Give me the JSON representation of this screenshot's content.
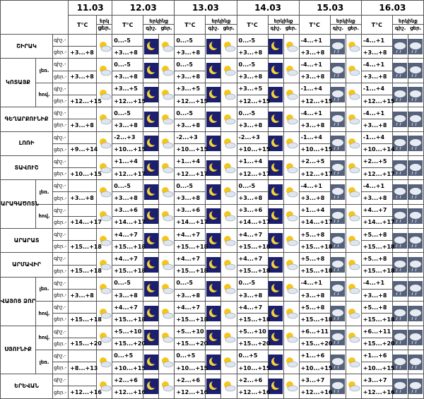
{
  "header": {
    "dates": [
      "11.03",
      "12.03",
      "13.03",
      "14.03",
      "15.03",
      "16.03"
    ],
    "temp_label": "T°C",
    "first_sky_label": "երկ",
    "sky_label": "երկինք",
    "night_label": "գիշ.",
    "day_label": "ցեր."
  },
  "row_labels": [
    "գիշ.-",
    "ցեր.-"
  ],
  "regions": [
    {
      "name": "ՇԻՐԱԿ",
      "subregions": [
        {
          "night": [
            "0...-5",
            "0...-5",
            "0...-5",
            "-4...+1",
            "-4...+1"
          ],
          "day": [
            "+3...+8",
            "+3...+8",
            "+3...+8",
            "+3...+8",
            "+3...+8",
            "+3...+8"
          ]
        }
      ]
    },
    {
      "name": "ԿՈՏԱՅՔ",
      "subregions": [
        {
          "label": "լեռ.",
          "night": [
            "0...-5",
            "0...-5",
            "0...-5",
            "-4...+1",
            "-4...+1"
          ],
          "day": [
            "+3...+8",
            "+3...+8",
            "+3...+8",
            "+3...+8",
            "+3...+8",
            "+3...+8"
          ]
        },
        {
          "label": "հով.",
          "night": [
            "+3...+5",
            "+3...+5",
            "+3...+5",
            "-1...+4",
            "-1...+4"
          ],
          "day": [
            "+12...+15",
            "+12...+15",
            "+12...+15",
            "+12...+15",
            "+12...+15",
            "+12...+15"
          ]
        }
      ]
    },
    {
      "name": "ԳԵՂԱՐՔՈՒՆԻՔ",
      "subregions": [
        {
          "night": [
            "0...-5",
            "0...-5",
            "0...-5",
            "-4...+1",
            "-4...+1"
          ],
          "day": [
            "+3...+8",
            "+3...+8",
            "+3...+8",
            "+3...+8",
            "+3...+8",
            "+3...+8"
          ]
        }
      ]
    },
    {
      "name": "ԼՈՌԻ",
      "subregions": [
        {
          "night": [
            "-2...+3",
            "-2...+3",
            "-2...+3",
            "-1...+4",
            "-1...+4"
          ],
          "day": [
            "+9...+14",
            "+10...+15",
            "+10...+15",
            "+10...+15",
            "+10...+15",
            "+10...+14"
          ]
        }
      ]
    },
    {
      "name": "ՏԱՎՈՒՇ",
      "subregions": [
        {
          "night": [
            "+1...+4",
            "+1...+4",
            "+1...+4",
            "+2...+5",
            "+2...+5"
          ],
          "day": [
            "+10...+15",
            "+12...+17",
            "+12...+17",
            "+12...+17",
            "+12...+17",
            "+12...+17"
          ]
        }
      ]
    },
    {
      "name": "ԱՐԱԳԱԾՈՏՆ",
      "subregions": [
        {
          "label": "լեռ.",
          "night": [
            "0...-5",
            "0...-5",
            "0...-5",
            "-4...+1",
            "-4...+1"
          ],
          "day": [
            "+3...+8",
            "+3...+8",
            "+3...+8",
            "+3...+8",
            "+3...+8",
            "+3...+8"
          ]
        },
        {
          "label": "հով.",
          "night": [
            "+3...+6",
            "+3...+6",
            "+3...+6",
            "+1...+4",
            "+4...+7"
          ],
          "day": [
            "+14...+17",
            "+14...+17",
            "+14...+17",
            "+14...+17",
            "+14...+17",
            "+14...+17"
          ]
        }
      ]
    },
    {
      "name": "ԱՐԱՐԱՏ",
      "subregions": [
        {
          "night": [
            "+4...+7",
            "+4...+7",
            "+4...+7",
            "+5...+8",
            "+5...+8"
          ],
          "day": [
            "+15...+18",
            "+15...+18",
            "+15...+18",
            "+15...+18",
            "+15...+18",
            "+15...+18"
          ]
        }
      ]
    },
    {
      "name": "ԱՐՄԱՎԻՐ",
      "subregions": [
        {
          "night": [
            "+4...+7",
            "+4...+7",
            "+4...+7",
            "+5...+8",
            "+5...+8"
          ],
          "day": [
            "+15...+18",
            "+15...+18",
            "+15...+18",
            "+15...+18",
            "+15...+18",
            "+15...+18"
          ]
        }
      ]
    },
    {
      "name": "ՎԱՅՈՑ ՁՈՐ",
      "subregions": [
        {
          "label": "լեռ.",
          "night": [
            "0...-5",
            "0...-5",
            "0...-5",
            "-4...+1",
            "-4...+1"
          ],
          "day": [
            "+3...+8",
            "+3...+8",
            "+3...+8",
            "+3...+8",
            "+3...+8",
            "+3...+8"
          ]
        },
        {
          "label": "հով.",
          "night": [
            "+4...+7",
            "+4...+7",
            "+4...+7",
            "+5...+8",
            "+5...+8"
          ],
          "day": [
            "+15...+18",
            "+15...+18",
            "+15...+18",
            "+15...+18",
            "+15...+18",
            "+15...+18"
          ]
        }
      ]
    },
    {
      "name": "ՍՅՈՒՆԻՔ",
      "subregions": [
        {
          "label": "հով.",
          "night": [
            "+5...+10",
            "+5...+10",
            "+5...+10",
            "+6...+11",
            "+6...+11"
          ],
          "day": [
            "+15...+20",
            "+15...+20",
            "+15...+20",
            "+15...+20",
            "+15...+20",
            "+15...+20"
          ]
        },
        {
          "label": "լեռ.",
          "night": [
            "0...+5",
            "0...+5",
            "0...+5",
            "+1...+6",
            "+1...+6"
          ],
          "day": [
            "+8...+13",
            "+10...+15",
            "+10...+15",
            "+10...+15",
            "+10...+15",
            "+10...+15"
          ]
        }
      ]
    },
    {
      "name": "ԵՐԵՎԱՆ",
      "subregions": [
        {
          "night": [
            "+2...+6",
            "+2...+6",
            "+2...+6",
            "+3...+7",
            "+3...+7"
          ],
          "day": [
            "+12...+16",
            "+12...+16",
            "+12...+16",
            "+12...+16",
            "+12...+16",
            "+12...+16"
          ]
        }
      ]
    }
  ]
}
